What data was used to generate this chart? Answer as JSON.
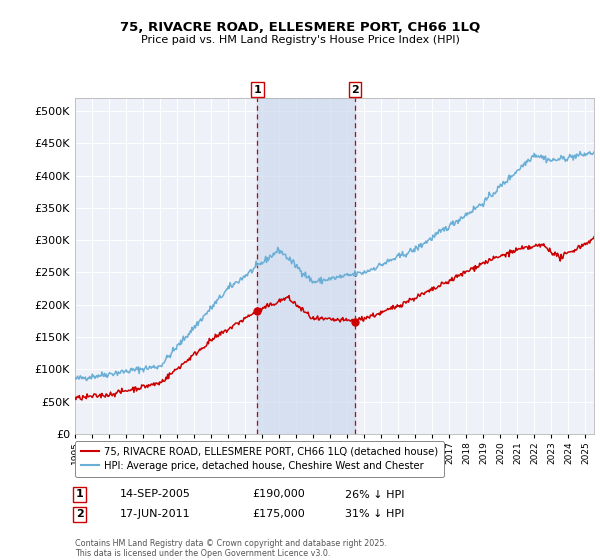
{
  "title_line1": "75, RIVACRE ROAD, ELLESMERE PORT, CH66 1LQ",
  "title_line2": "Price paid vs. HM Land Registry's House Price Index (HPI)",
  "background_color": "#ffffff",
  "plot_bg_color": "#eef2f8",
  "grid_color": "#ffffff",
  "hpi_color": "#6baed6",
  "price_color": "#cc0000",
  "sale1_date": "14-SEP-2005",
  "sale1_price": 190000,
  "sale1_label": "26% ↓ HPI",
  "sale2_date": "17-JUN-2011",
  "sale2_price": 175000,
  "sale2_label": "31% ↓ HPI",
  "sale1_year": 2005.71,
  "sale2_year": 2011.46,
  "shade_color": "#ccd9ee",
  "dashed_color": "#cc0000",
  "footer": "Contains HM Land Registry data © Crown copyright and database right 2025.\nThis data is licensed under the Open Government Licence v3.0.",
  "legend1": "75, RIVACRE ROAD, ELLESMERE PORT, CH66 1LQ (detached house)",
  "legend2": "HPI: Average price, detached house, Cheshire West and Chester",
  "ylim": [
    0,
    520000
  ],
  "yticks": [
    0,
    50000,
    100000,
    150000,
    200000,
    250000,
    300000,
    350000,
    400000,
    450000,
    500000
  ],
  "xmin": 1995,
  "xmax": 2025.5
}
